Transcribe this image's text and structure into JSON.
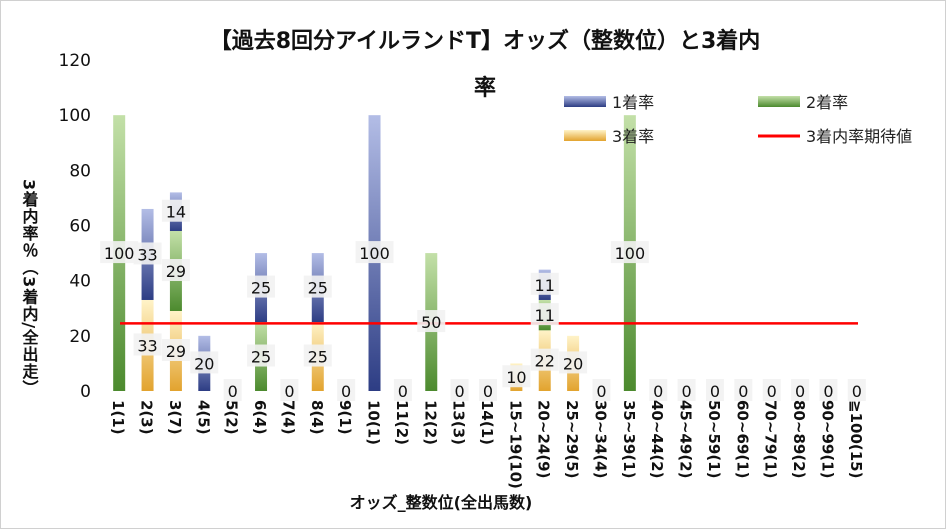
{
  "chart_data": {
    "type": "bar",
    "stacked": true,
    "title_line1": "【過去8回分アイルランドT】オッズ（整数位）と3着内",
    "title_line2": "率",
    "ylabel": "3着内率％（3着内/全出走）",
    "xlabel": "オッズ_整数位(全出馬数)",
    "ylim": [
      0,
      120
    ],
    "yticks": [
      0,
      20,
      40,
      60,
      80,
      100,
      120
    ],
    "categories": [
      "1(1)",
      "2(3)",
      "3(7)",
      "4(5)",
      "5(2)",
      "6(4)",
      "7(4)",
      "8(4)",
      "9(1)",
      "10(1)",
      "11(2)",
      "12(2)",
      "13(3)",
      "14(1)",
      "15~19(10)",
      "20~24(9)",
      "25~29(5)",
      "30~34(4)",
      "35~39(1)",
      "40~44(2)",
      "45~49(2)",
      "50~59(1)",
      "60~69(1)",
      "70~79(1)",
      "80~89(2)",
      "90~99(1)",
      "≧100(15)"
    ],
    "series": [
      {
        "name": "3着率",
        "color": "#e8a93a",
        "values": [
          0,
          33,
          29,
          0,
          0,
          0,
          0,
          25,
          0,
          0,
          0,
          0,
          0,
          0,
          10,
          22,
          20,
          0,
          0,
          0,
          0,
          0,
          0,
          0,
          0,
          0,
          0
        ]
      },
      {
        "name": "2着率",
        "color": "#5a9a3c",
        "values": [
          100,
          0,
          29,
          0,
          0,
          25,
          0,
          0,
          0,
          0,
          0,
          50,
          0,
          0,
          0,
          11,
          0,
          0,
          100,
          0,
          0,
          0,
          0,
          0,
          0,
          0,
          0
        ]
      },
      {
        "name": "1着率",
        "color": "#3a4f9a",
        "values": [
          0,
          33,
          14,
          20,
          0,
          25,
          0,
          25,
          0,
          100,
          0,
          0,
          0,
          0,
          0,
          11,
          0,
          0,
          0,
          0,
          0,
          0,
          0,
          0,
          0,
          0,
          0
        ]
      }
    ],
    "reference_line": {
      "name": "3着内率期待値",
      "color": "#ff0000",
      "value": 24.5
    },
    "legend": [
      "1着率",
      "2着率",
      "3着率",
      "3着内率期待値"
    ]
  }
}
